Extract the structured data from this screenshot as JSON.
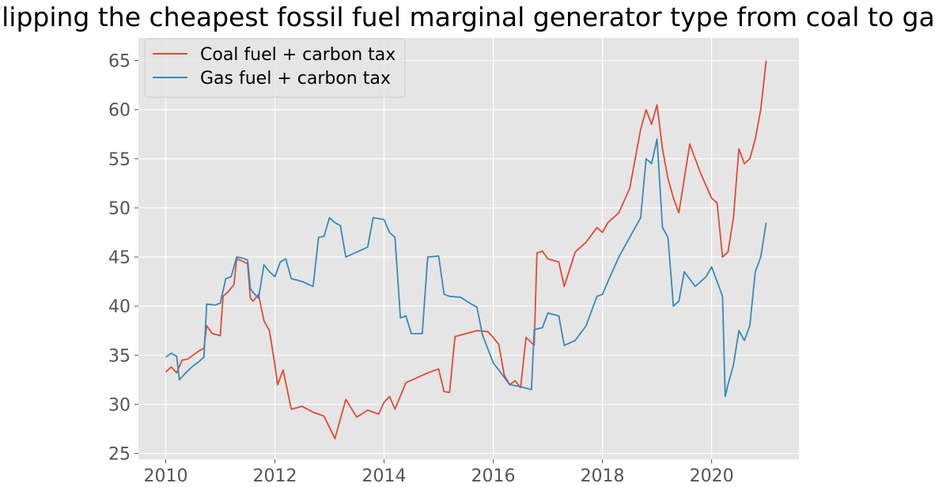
{
  "chart_data": {
    "type": "line",
    "title": "Flipping the cheapest fossil fuel marginal generator type from coal to gas",
    "xlabel": "",
    "ylabel": "",
    "xlim": [
      2009.5,
      2021.6
    ],
    "ylim": [
      24.4,
      67.3
    ],
    "x_ticks": [
      2010,
      2012,
      2014,
      2016,
      2018,
      2020
    ],
    "x_tick_labels": [
      "2010",
      "2012",
      "2014",
      "2016",
      "2018",
      "2020"
    ],
    "y_ticks": [
      25,
      30,
      35,
      40,
      45,
      50,
      55,
      60,
      65
    ],
    "y_tick_labels": [
      "25",
      "30",
      "35",
      "40",
      "45",
      "50",
      "55",
      "60",
      "65"
    ],
    "grid": true,
    "legend": "top-left",
    "colors": {
      "background": "#e5e5e5",
      "grid": "#ffffff"
    },
    "series": [
      {
        "name": "Coal fuel + carbon tax",
        "color": "#e24a33",
        "x": [
          2010.0,
          2010.1,
          2010.2,
          2010.3,
          2010.4,
          2010.5,
          2010.6,
          2010.7,
          2010.75,
          2010.85,
          2011.0,
          2011.05,
          2011.15,
          2011.25,
          2011.3,
          2011.4,
          2011.5,
          2011.55,
          2011.6,
          2011.7,
          2011.8,
          2011.9,
          2012.0,
          2012.05,
          2012.15,
          2012.3,
          2012.5,
          2012.7,
          2012.9,
          2013.1,
          2013.3,
          2013.5,
          2013.7,
          2013.9,
          2014.0,
          2014.1,
          2014.2,
          2014.4,
          2014.6,
          2014.8,
          2015.0,
          2015.1,
          2015.2,
          2015.3,
          2015.5,
          2015.7,
          2015.9,
          2016.0,
          2016.1,
          2016.2,
          2016.3,
          2016.4,
          2016.5,
          2016.6,
          2016.75,
          2016.8,
          2016.9,
          2017.0,
          2017.2,
          2017.3,
          2017.5,
          2017.7,
          2017.9,
          2018.0,
          2018.1,
          2018.3,
          2018.5,
          2018.6,
          2018.7,
          2018.8,
          2018.9,
          2019.0,
          2019.1,
          2019.2,
          2019.3,
          2019.4,
          2019.5,
          2019.6,
          2019.8,
          2020.0,
          2020.1,
          2020.2,
          2020.3,
          2020.4,
          2020.5,
          2020.6,
          2020.7,
          2020.8,
          2020.9,
          2021.0
        ],
        "values": [
          33.3,
          33.8,
          33.2,
          34.5,
          34.6,
          35.0,
          35.4,
          35.7,
          38.0,
          37.2,
          37.0,
          41.0,
          41.5,
          42.2,
          44.8,
          44.6,
          44.3,
          40.8,
          40.5,
          41.2,
          38.5,
          37.5,
          34.0,
          32.0,
          33.5,
          29.5,
          29.8,
          29.2,
          28.8,
          26.5,
          30.5,
          28.7,
          29.4,
          29.0,
          30.2,
          30.8,
          29.5,
          32.2,
          32.7,
          33.2,
          33.6,
          31.3,
          31.2,
          36.9,
          37.2,
          37.5,
          37.4,
          36.8,
          36.1,
          33.0,
          32.0,
          32.4,
          31.7,
          36.8,
          36.0,
          45.4,
          45.6,
          44.8,
          44.5,
          42.0,
          45.5,
          46.5,
          48.0,
          47.5,
          48.5,
          49.5,
          52.0,
          55.0,
          58.0,
          60.0,
          58.5,
          60.5,
          56.0,
          53.0,
          51.0,
          49.5,
          53.0,
          56.5,
          53.5,
          51.0,
          50.5,
          45.0,
          45.5,
          49.0,
          56.0,
          54.5,
          55.0,
          57.0,
          60.0,
          65.0
        ]
      },
      {
        "name": "Gas fuel + carbon tax",
        "color": "#348abd",
        "x": [
          2010.0,
          2010.1,
          2010.2,
          2010.25,
          2010.3,
          2010.4,
          2010.5,
          2010.6,
          2010.7,
          2010.75,
          2010.9,
          2011.0,
          2011.1,
          2011.2,
          2011.3,
          2011.4,
          2011.5,
          2011.55,
          2011.6,
          2011.7,
          2011.8,
          2011.9,
          2012.0,
          2012.1,
          2012.2,
          2012.3,
          2012.5,
          2012.7,
          2012.8,
          2012.9,
          2013.0,
          2013.1,
          2013.2,
          2013.3,
          2013.5,
          2013.7,
          2013.8,
          2014.0,
          2014.1,
          2014.2,
          2014.3,
          2014.4,
          2014.5,
          2014.7,
          2014.8,
          2015.0,
          2015.1,
          2015.2,
          2015.4,
          2015.6,
          2015.7,
          2015.8,
          2016.0,
          2016.1,
          2016.3,
          2016.5,
          2016.7,
          2016.75,
          2016.9,
          2017.0,
          2017.2,
          2017.3,
          2017.5,
          2017.7,
          2017.9,
          2018.0,
          2018.1,
          2018.3,
          2018.5,
          2018.7,
          2018.8,
          2018.9,
          2019.0,
          2019.1,
          2019.2,
          2019.3,
          2019.4,
          2019.5,
          2019.7,
          2019.9,
          2020.0,
          2020.1,
          2020.2,
          2020.25,
          2020.3,
          2020.4,
          2020.5,
          2020.6,
          2020.7,
          2020.8,
          2020.9,
          2021.0
        ],
        "values": [
          34.8,
          35.2,
          34.9,
          32.5,
          32.8,
          33.4,
          33.9,
          34.3,
          34.8,
          40.2,
          40.1,
          40.3,
          42.8,
          43.0,
          45.0,
          44.9,
          44.7,
          41.8,
          41.4,
          40.8,
          44.2,
          43.5,
          43.0,
          44.5,
          44.8,
          42.8,
          42.5,
          42.0,
          47.0,
          47.1,
          49.0,
          48.5,
          48.2,
          45.0,
          45.5,
          46.0,
          49.0,
          48.8,
          47.5,
          47.0,
          38.8,
          39.0,
          37.2,
          37.2,
          45.0,
          45.1,
          41.2,
          41.0,
          40.9,
          40.2,
          39.9,
          37.1,
          34.2,
          33.5,
          32.0,
          31.8,
          31.5,
          37.6,
          37.8,
          39.3,
          39.0,
          36.0,
          36.5,
          38.0,
          41.0,
          41.2,
          42.5,
          45.0,
          47.0,
          49.0,
          55.0,
          54.5,
          57.0,
          48.0,
          47.0,
          40.0,
          40.5,
          43.5,
          42.0,
          43.0,
          44.0,
          42.5,
          41.0,
          30.8,
          32.0,
          34.0,
          37.5,
          36.5,
          38.0,
          43.5,
          45.0,
          48.5
        ]
      }
    ]
  }
}
